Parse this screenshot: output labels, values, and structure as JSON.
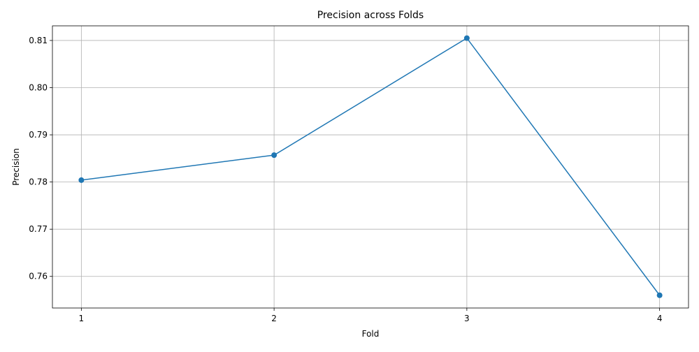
{
  "chart_data": {
    "type": "line",
    "title": "Precision across Folds",
    "xlabel": "Fold",
    "ylabel": "Precision",
    "x": [
      1,
      2,
      3,
      4
    ],
    "x_tick_labels": [
      "1",
      "2",
      "3",
      "4"
    ],
    "xlim": [
      0.85,
      4.15
    ],
    "y_ticks": [
      0.76,
      0.77,
      0.78,
      0.79,
      0.8,
      0.81
    ],
    "y_tick_labels": [
      "0.76",
      "0.77",
      "0.78",
      "0.79",
      "0.80",
      "0.81"
    ],
    "ylim": [
      0.7533,
      0.8131
    ],
    "grid": true,
    "legend": false,
    "series": [
      {
        "values": [
          0.7804,
          0.7857,
          0.8105,
          0.756
        ],
        "color": "#1f77b4",
        "marker": "circle"
      }
    ]
  }
}
